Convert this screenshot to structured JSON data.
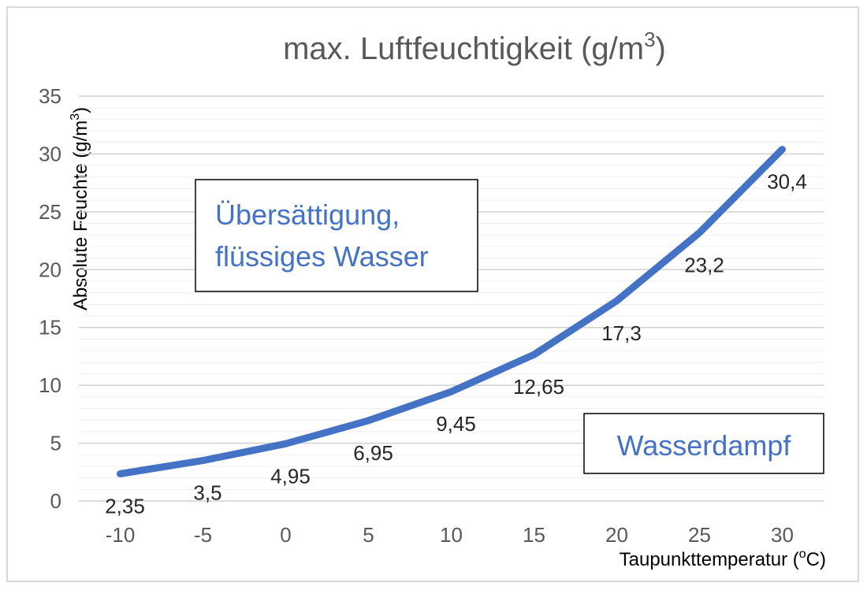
{
  "chart_data": {
    "type": "line",
    "title_main": "max. Luftfeuchtigkeit (g/m",
    "title_sup": "3",
    "title_end": ")",
    "ylabel_main": "Absolute Feuchte (g/m",
    "ylabel_sup": "3",
    "ylabel_end": ")",
    "xlabel_main": "Taupunkttemperatur (",
    "xlabel_sup": "o",
    "xlabel_end": "C)",
    "x": [
      -10,
      -5,
      0,
      5,
      10,
      15,
      20,
      25,
      30
    ],
    "x_tick_labels": [
      "-10",
      "-5",
      "0",
      "5",
      "10",
      "15",
      "20",
      "25",
      "30"
    ],
    "y_ticks": [
      0,
      5,
      10,
      15,
      20,
      25,
      30,
      35
    ],
    "y_tick_labels": [
      "0",
      "5",
      "10",
      "15",
      "20",
      "25",
      "30",
      "35"
    ],
    "series": [
      {
        "values": [
          2.35,
          3.5,
          4.95,
          6.95,
          9.45,
          12.65,
          17.3,
          23.2,
          30.4
        ],
        "data_labels": [
          "2,35",
          "3,5",
          "4,95",
          "6,95",
          "9,45",
          "12,65",
          "17,3",
          "23,2",
          "30,4"
        ],
        "color": "#4472c4"
      }
    ],
    "ylim": [
      0,
      35
    ],
    "grid": "horizontal",
    "annotations": {
      "supersat_line1": "Übersättigung,",
      "supersat_line2": "flüssiges Wasser",
      "vapor": "Wasserdampf"
    },
    "colors": {
      "line": "#4472c4",
      "annotation_text": "#4472c4",
      "grid": "#d9d9d9"
    }
  }
}
